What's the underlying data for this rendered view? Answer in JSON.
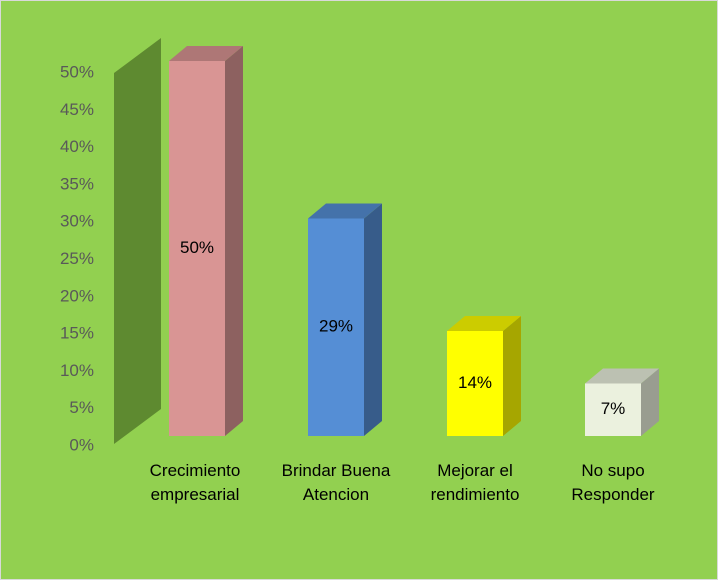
{
  "chart_data": {
    "type": "bar3d",
    "categories": [
      "Crecimiento empresarial",
      "Brindar Buena Atencion",
      "Mejorar el rendimiento",
      "No supo Responder"
    ],
    "values": [
      50,
      29,
      14,
      7
    ],
    "value_labels": [
      "50%",
      "29%",
      "14%",
      "7%"
    ],
    "colors": [
      "#d99594",
      "#558ed5",
      "#ffff00",
      "#ebf1de"
    ],
    "ylim": [
      0,
      50
    ],
    "yticks": [
      {
        "value": 0,
        "label": "0%"
      },
      {
        "value": 5,
        "label": "5%"
      },
      {
        "value": 10,
        "label": "10%"
      },
      {
        "value": 15,
        "label": "15%"
      },
      {
        "value": 20,
        "label": "20%"
      },
      {
        "value": 25,
        "label": "25%"
      },
      {
        "value": 30,
        "label": "30%"
      },
      {
        "value": 35,
        "label": "35%"
      },
      {
        "value": 40,
        "label": "40%"
      },
      {
        "value": 45,
        "label": "45%"
      },
      {
        "value": 50,
        "label": "50%"
      }
    ]
  }
}
